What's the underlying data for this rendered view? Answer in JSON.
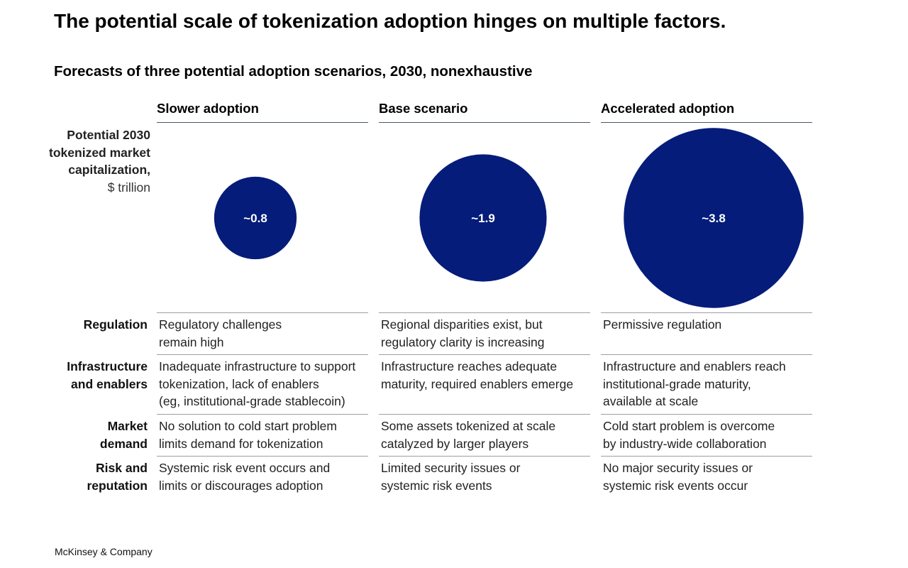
{
  "title": "The potential scale of tokenization adoption hinges on multiple factors.",
  "subtitle": "Forecasts of three potential adoption scenarios, 2030, nonexhaustive",
  "metric_label": {
    "main": "Potential 2030 tokenized market capitalization,",
    "unit": "$ trillion"
  },
  "colors": {
    "bubble": "#051c7a",
    "bubble_text": "#ffffff"
  },
  "chart_data": {
    "type": "scatter",
    "encoding": "bubble area proportional to value",
    "categories": [
      "Slower adoption",
      "Base scenario",
      "Accelerated adoption"
    ],
    "values": [
      0.8,
      1.9,
      3.8
    ],
    "data_labels": [
      "~0.8",
      "~1.9",
      "~3.8"
    ],
    "ylabel": "Potential 2030 tokenized market capitalization, $ trillion"
  },
  "rows": [
    {
      "label": "Regulation",
      "cells": [
        "Regulatory challenges\nremain high",
        "Regional disparities exist, but\nregulatory clarity is increasing",
        "Permissive regulation"
      ]
    },
    {
      "label": "Infrastructure\nand enablers",
      "cells": [
        "Inadequate infrastructure to support\ntokenization, lack of enablers\n(eg, institutional-grade stablecoin)",
        "Infrastructure reaches adequate\nmaturity, required enablers emerge",
        "Infrastructure and enablers reach\ninstitutional-grade maturity,\navailable at scale"
      ]
    },
    {
      "label": "Market\ndemand",
      "cells": [
        "No solution to cold start problem\nlimits demand for tokenization",
        "Some assets tokenized at scale\ncatalyzed by larger players",
        "Cold start problem is overcome\nby industry-wide collaboration"
      ]
    },
    {
      "label": "Risk and\nreputation",
      "cells": [
        "Systemic risk event occurs and\nlimits or discourages adoption",
        "Limited security issues or\nsystemic risk events",
        "No major security issues or\nsystemic risk events occur"
      ]
    }
  ],
  "footer": "McKinsey & Company"
}
